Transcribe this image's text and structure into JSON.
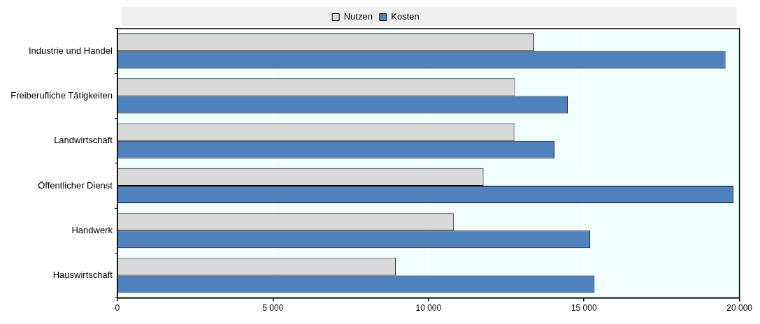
{
  "chart_data": {
    "type": "bar",
    "orientation": "horizontal",
    "categories": [
      "Industrie und Handel",
      "Freiberufliche Tätigkeiten",
      "Landwirtschaft",
      "Öffentlicher Dienst",
      "Handwerk",
      "Hauswirtschaft"
    ],
    "series": [
      {
        "name": "Nutzen",
        "color": "#d9d9d9",
        "values": [
          13400,
          12780,
          12760,
          11770,
          10810,
          8950
        ]
      },
      {
        "name": "Kosten",
        "color": "#4f81bd",
        "values": [
          19550,
          14480,
          14050,
          19810,
          15200,
          15340
        ]
      }
    ],
    "xlim": [
      0,
      20000
    ],
    "xticks": [
      0,
      {
        "value": 5000,
        "label": "5 000"
      },
      {
        "value": 10000,
        "label": "10 000"
      },
      {
        "value": 15000,
        "label": "15 000"
      },
      {
        "value": 20000,
        "label": "20 000"
      }
    ],
    "grid": "x",
    "legend": "top"
  }
}
